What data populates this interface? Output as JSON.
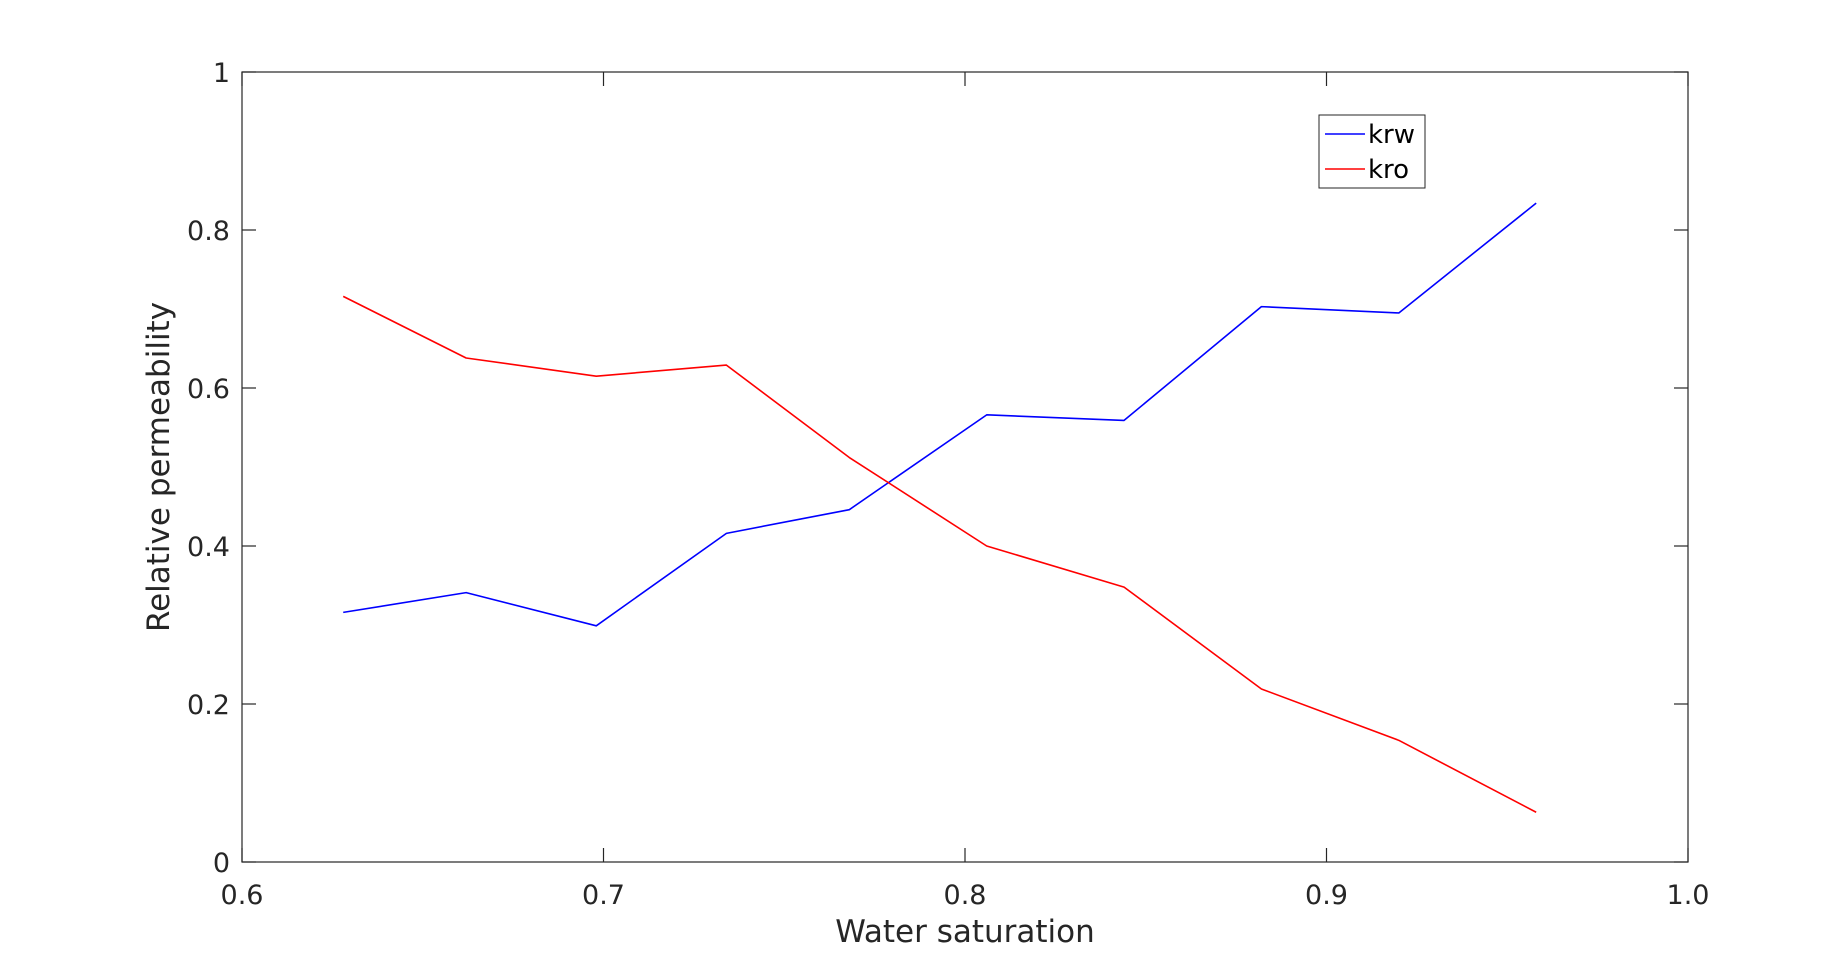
{
  "chart_data": {
    "type": "line",
    "title": "",
    "xlabel": "Water saturation",
    "ylabel": "Relative permeability",
    "xlim": [
      0.6,
      1.0
    ],
    "ylim": [
      0,
      1
    ],
    "xticks": [
      "0.6",
      "0.7",
      "0.8",
      "0.9",
      "1.0"
    ],
    "yticks": [
      "0",
      "0.2",
      "0.4",
      "0.6",
      "0.8",
      "1"
    ],
    "grid": false,
    "legend_position": "top-right",
    "x": [
      0.628,
      0.662,
      0.698,
      0.734,
      0.768,
      0.806,
      0.844,
      0.882,
      0.92,
      0.958
    ],
    "series": [
      {
        "name": "krw",
        "color": "#0000ff",
        "values": [
          0.316,
          0.341,
          0.299,
          0.416,
          0.446,
          0.566,
          0.559,
          0.703,
          0.695,
          0.834
        ]
      },
      {
        "name": "kro",
        "color": "#ff0000",
        "values": [
          0.716,
          0.638,
          0.615,
          0.629,
          0.512,
          0.4,
          0.348,
          0.219,
          0.154,
          0.063
        ]
      }
    ]
  }
}
